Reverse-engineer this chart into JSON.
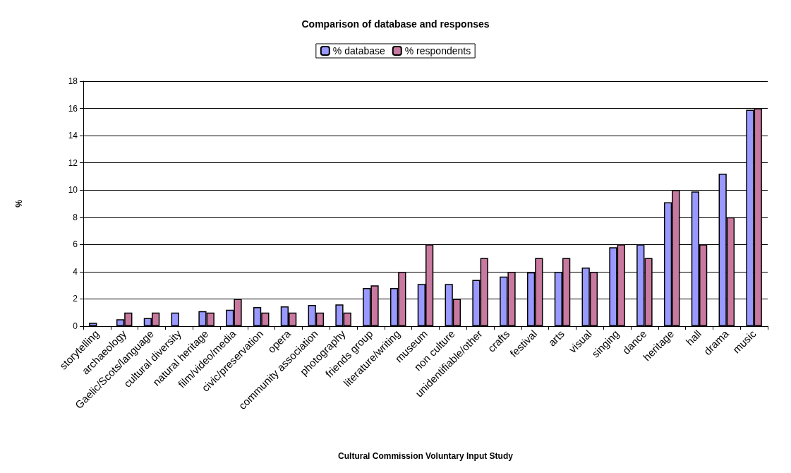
{
  "chart_data": {
    "type": "bar",
    "title": "Comparison of database and responses",
    "xlabel": "Cultural Commission Voluntary Input Study",
    "ylabel": "%",
    "categories": [
      "storytelling",
      "archaeology",
      "Gaelic/Scots/language",
      "cultural diversity",
      "natural heritage",
      "film/video/media",
      "civic/preservation",
      "opera",
      "community association",
      "photography",
      "friends group",
      "literature/writing",
      "museum",
      "non culture",
      "unidentifiable/other",
      "crafts",
      "festival",
      "arts",
      "visual",
      "singing",
      "dance",
      "heritage",
      "hall",
      "drama",
      "music"
    ],
    "series": [
      {
        "name": "% database",
        "color": "#9999ff",
        "values": [
          0.25,
          0.5,
          0.6,
          1,
          1.1,
          1.2,
          1.4,
          1.45,
          1.55,
          1.6,
          2.8,
          2.8,
          3.1,
          3.1,
          3.4,
          3.65,
          3.95,
          4,
          4.3,
          5.8,
          6,
          9.1,
          9.9,
          11.2,
          15.9
        ]
      },
      {
        "name": "% respondents",
        "color": "#c9799f",
        "values": [
          null,
          1,
          1,
          null,
          1,
          2,
          1,
          1,
          1,
          1,
          3,
          4,
          6,
          2,
          5,
          4,
          5,
          5,
          4,
          6,
          5,
          10,
          6,
          8,
          16
        ]
      }
    ],
    "ylim": [
      0,
      18
    ],
    "yticks": [
      0,
      2,
      4,
      6,
      8,
      10,
      12,
      14,
      16,
      18
    ],
    "grid": "y",
    "legend": "top"
  }
}
